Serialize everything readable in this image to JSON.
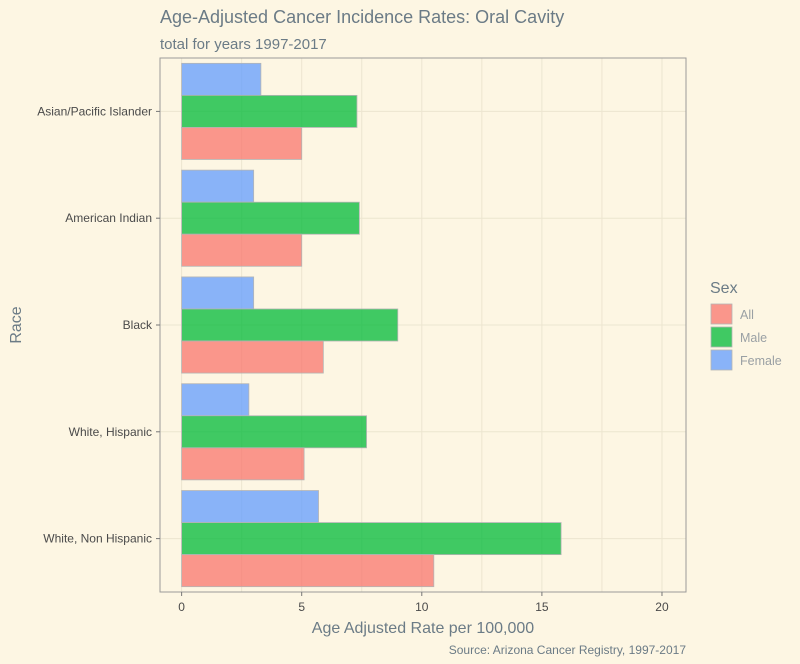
{
  "chart_data": {
    "type": "bar",
    "orientation": "horizontal",
    "title": "Age-Adjusted Cancer Incidence Rates: Oral Cavity",
    "subtitle": "total for years 1997-2017",
    "xlabel": "Age Adjusted Rate per 100,000",
    "ylabel": "Race",
    "caption": "Source: Arizona Cancer Registry, 1997-2017",
    "xlim": [
      -0.9,
      21
    ],
    "xticks": [
      0,
      5,
      10,
      15,
      20
    ],
    "grid": true,
    "legend_title": "Sex",
    "legend_position": "right",
    "categories": [
      "Asian/Pacific Islander",
      "American Indian",
      "Black",
      "White, Hispanic",
      "White, Non Hispanic"
    ],
    "series": [
      {
        "name": "All",
        "color": "#f8766d",
        "values": [
          5.0,
          5.0,
          5.9,
          5.1,
          10.5
        ]
      },
      {
        "name": "Male",
        "color": "#00ba38",
        "values": [
          7.3,
          7.4,
          9.0,
          7.7,
          15.8
        ]
      },
      {
        "name": "Female",
        "color": "#619cff",
        "values": [
          3.3,
          3.0,
          3.0,
          2.8,
          5.7
        ]
      }
    ]
  }
}
